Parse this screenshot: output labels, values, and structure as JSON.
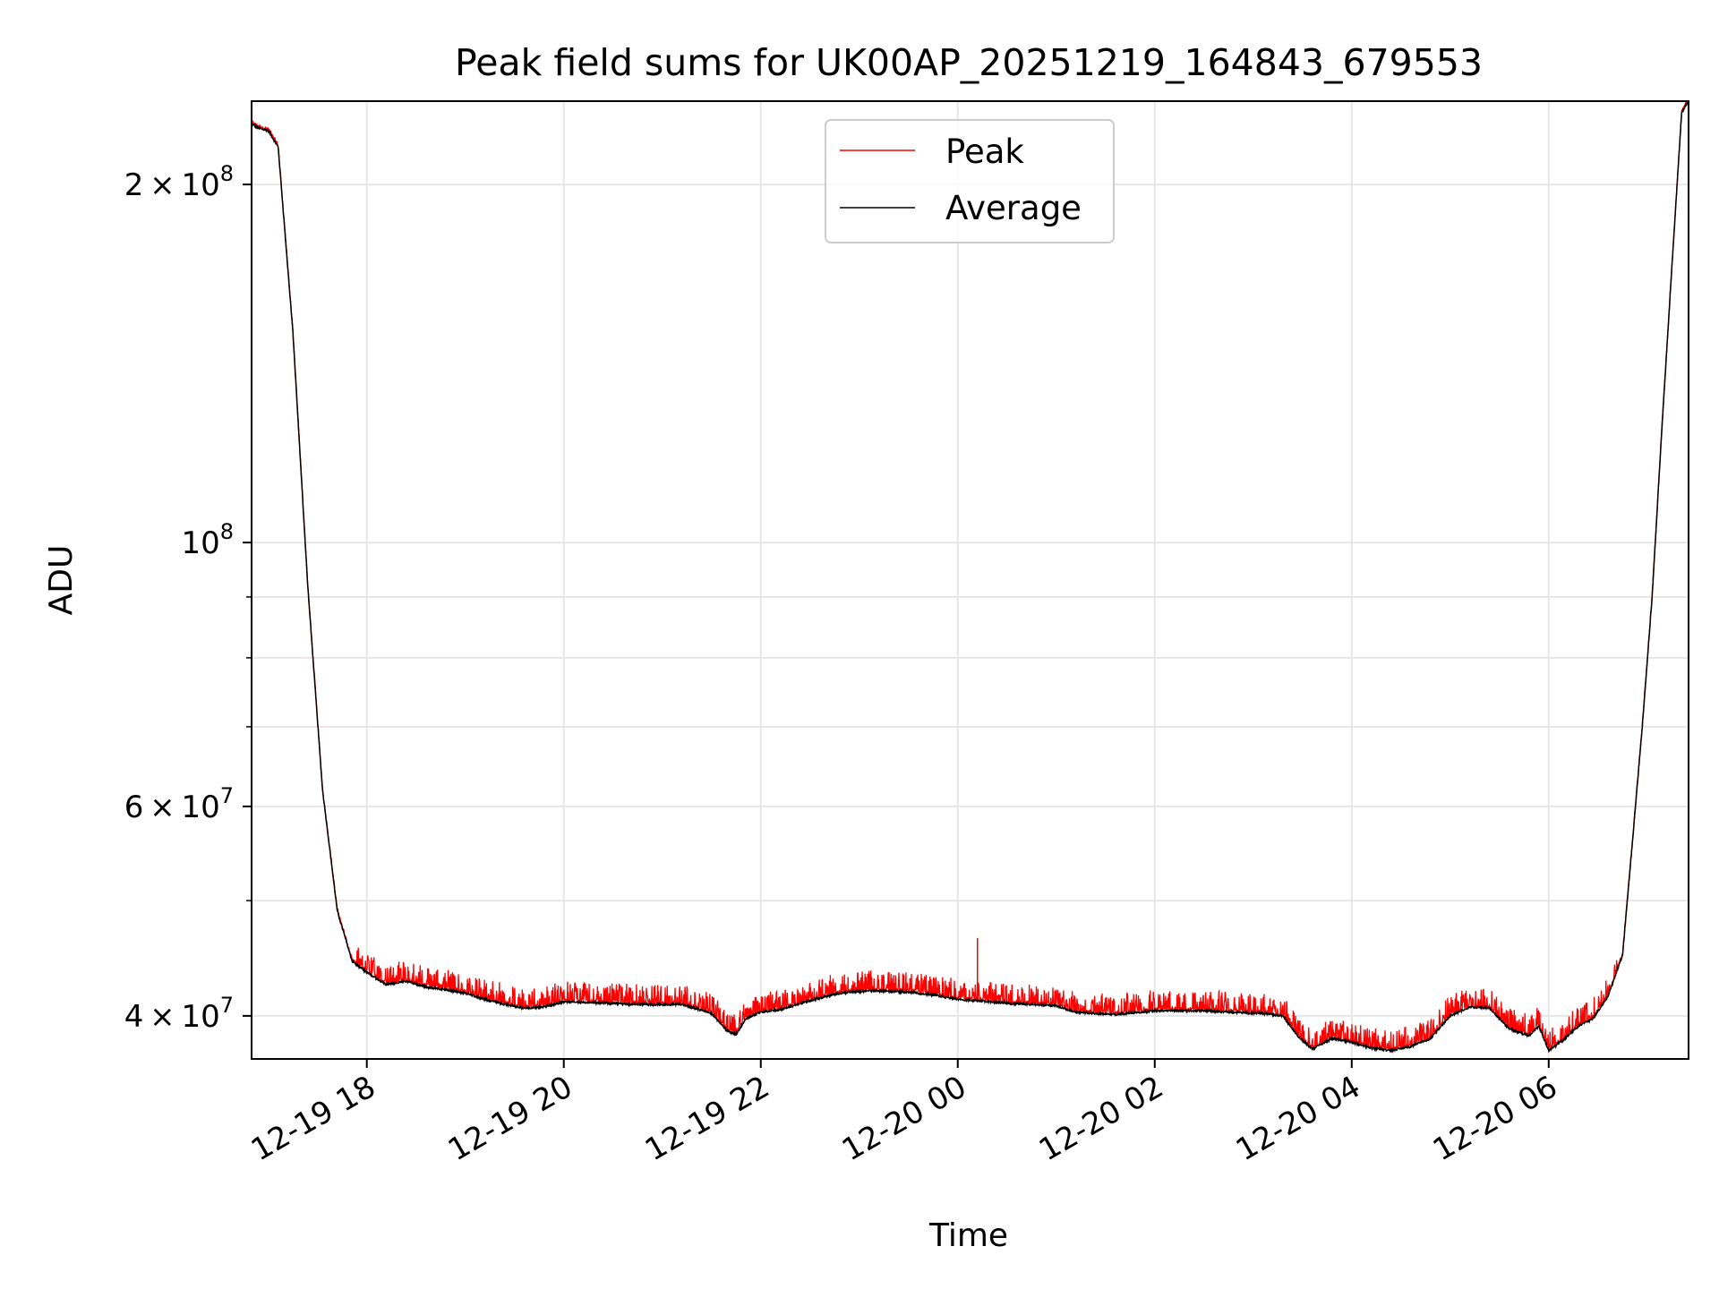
{
  "chart_data": {
    "type": "line",
    "title": "Peak field sums for UK00AP_20251219_164843_679553",
    "xlabel": "Time",
    "ylabel": "ADU",
    "yscale": "log",
    "grid": true,
    "legend_position": "upper-center",
    "x_unit": "hours since 2025-12-19 00:00",
    "xlim": [
      16.83,
      31.42
    ],
    "ylim": [
      36800000,
      235000000
    ],
    "x_ticks": [
      {
        "value": 18,
        "label": "12-19 18"
      },
      {
        "value": 20,
        "label": "12-19 20"
      },
      {
        "value": 22,
        "label": "12-19 22"
      },
      {
        "value": 24,
        "label": "12-20 00"
      },
      {
        "value": 26,
        "label": "12-20 02"
      },
      {
        "value": 28,
        "label": "12-20 04"
      },
      {
        "value": 30,
        "label": "12-20 06"
      }
    ],
    "y_major_ticks": [
      {
        "value": 40000000,
        "mantissa": "4",
        "exponent": "7"
      },
      {
        "value": 60000000,
        "mantissa": "6",
        "exponent": "7"
      },
      {
        "value": 100000000,
        "mantissa": "",
        "exponent": "8"
      },
      {
        "value": 200000000,
        "mantissa": "2",
        "exponent": "8"
      }
    ],
    "y_minor_ticks": [
      50000000,
      70000000,
      80000000,
      90000000
    ],
    "series": [
      {
        "name": "Peak",
        "color": "#ff0000",
        "spike_height_fraction": 0.025,
        "notable_spike": {
          "x": 24.2,
          "y": 46500000
        }
      },
      {
        "name": "Average",
        "color": "#000000",
        "x": [
          16.83,
          16.9,
          17.0,
          17.1,
          17.25,
          17.4,
          17.55,
          17.7,
          17.85,
          18.0,
          18.2,
          18.4,
          18.6,
          18.8,
          19.0,
          19.2,
          19.4,
          19.6,
          19.8,
          20.0,
          20.4,
          20.8,
          21.2,
          21.5,
          21.65,
          21.75,
          21.85,
          22.0,
          22.2,
          22.5,
          22.8,
          23.1,
          23.5,
          23.8,
          24.0,
          24.5,
          25.0,
          25.2,
          25.6,
          26.0,
          26.5,
          27.0,
          27.1,
          27.3,
          27.45,
          27.6,
          27.8,
          28.0,
          28.2,
          28.4,
          28.6,
          28.8,
          29.0,
          29.2,
          29.4,
          29.6,
          29.8,
          29.9,
          30.0,
          30.15,
          30.3,
          30.45,
          30.6,
          30.75,
          30.85,
          30.95,
          31.05,
          31.15,
          31.25,
          31.35,
          31.42
        ],
        "y": [
          225000000,
          223000000,
          222000000,
          215000000,
          150000000,
          92000000,
          62000000,
          49000000,
          44500000,
          43500000,
          42500000,
          42800000,
          42300000,
          42100000,
          41800000,
          41300000,
          40900000,
          40600000,
          40700000,
          41100000,
          41000000,
          40900000,
          40900000,
          40200000,
          38900000,
          38600000,
          39800000,
          40300000,
          40500000,
          41200000,
          41800000,
          42000000,
          41900000,
          41600000,
          41300000,
          41000000,
          40800000,
          40300000,
          40100000,
          40400000,
          40400000,
          40200000,
          40200000,
          40000000,
          38500000,
          37500000,
          38300000,
          38000000,
          37600000,
          37400000,
          37700000,
          38300000,
          40000000,
          40700000,
          40600000,
          39000000,
          38500000,
          39200000,
          37400000,
          38200000,
          39200000,
          39800000,
          41500000,
          45000000,
          56000000,
          70000000,
          90000000,
          125000000,
          170000000,
          230000000,
          235000000
        ]
      }
    ]
  }
}
